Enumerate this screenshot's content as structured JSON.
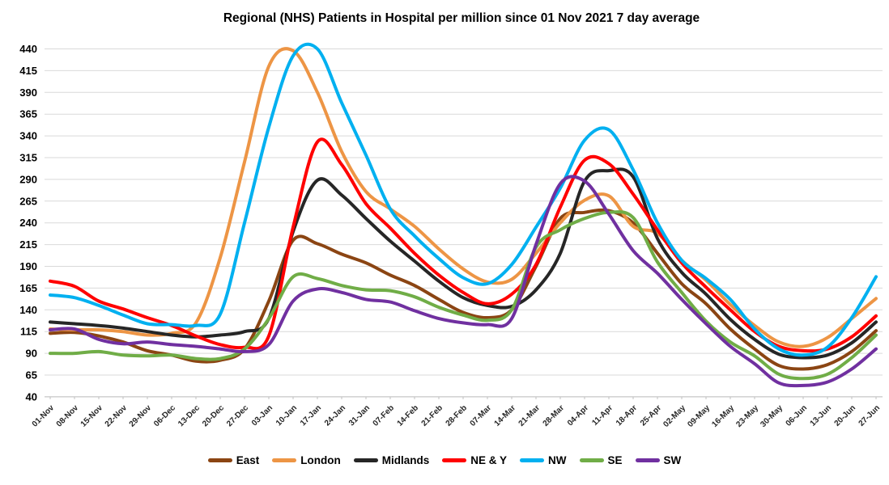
{
  "chart_data": {
    "type": "line",
    "title": "Regional (NHS) Patients in Hospital per million since 01 Nov 2021 7 day average",
    "xlabel": "",
    "ylabel": "",
    "ylim": [
      40,
      440
    ],
    "y_ticks": [
      440,
      415,
      390,
      365,
      340,
      315,
      290,
      265,
      240,
      215,
      190,
      165,
      140,
      115,
      90,
      65,
      40
    ],
    "grid": true,
    "legend_position": "bottom",
    "categories": [
      "01-Nov",
      "08-Nov",
      "15-Nov",
      "22-Nov",
      "29-Nov",
      "06-Dec",
      "13-Dec",
      "20-Dec",
      "27-Dec",
      "03-Jan",
      "10-Jan",
      "17-Jan",
      "24-Jan",
      "31-Jan",
      "07-Feb",
      "14-Feb",
      "21-Feb",
      "28-Feb",
      "07-Mar",
      "14-Mar",
      "21-Mar",
      "28-Mar",
      "04-Apr",
      "11-Apr",
      "18-Apr",
      "25-Apr",
      "02-May",
      "09-May",
      "16-May",
      "23-May",
      "30-May",
      "06-Jun",
      "13-Jun",
      "20-Jun",
      "27-Jun"
    ],
    "series": [
      {
        "name": "East",
        "color": "#8B4513",
        "values": [
          113,
          114,
          110,
          103,
          93,
          88,
          81,
          82,
          95,
          150,
          220,
          216,
          204,
          194,
          180,
          168,
          152,
          137,
          131,
          140,
          190,
          245,
          252,
          254,
          240,
          205,
          170,
          147,
          118,
          95,
          76,
          72,
          77,
          92,
          116
        ]
      },
      {
        "name": "London",
        "color": "#ED9545",
        "values": [
          118,
          117,
          117,
          115,
          111,
          113,
          125,
          200,
          310,
          420,
          438,
          390,
          322,
          276,
          256,
          236,
          210,
          187,
          172,
          175,
          205,
          240,
          266,
          271,
          236,
          228,
          197,
          174,
          146,
          122,
          103,
          98,
          108,
          130,
          153
        ]
      },
      {
        "name": "Midlands",
        "color": "#262626",
        "values": [
          126,
          124,
          122,
          119,
          115,
          111,
          109,
          111,
          115,
          130,
          230,
          289,
          272,
          245,
          219,
          196,
          173,
          154,
          145,
          144,
          163,
          205,
          288,
          300,
          293,
          222,
          183,
          158,
          129,
          106,
          89,
          85,
          88,
          102,
          126
        ]
      },
      {
        "name": "NE & Y",
        "color": "#FF0000",
        "values": [
          173,
          167,
          150,
          141,
          131,
          122,
          110,
          100,
          97,
          110,
          235,
          333,
          307,
          262,
          234,
          205,
          180,
          160,
          147,
          158,
          192,
          258,
          312,
          308,
          273,
          232,
          194,
          166,
          140,
          115,
          98,
          93,
          95,
          109,
          133
        ]
      },
      {
        "name": "NW",
        "color": "#00B0F0",
        "values": [
          157,
          154,
          145,
          134,
          124,
          123,
          122,
          135,
          240,
          350,
          432,
          440,
          378,
          318,
          256,
          225,
          199,
          177,
          170,
          192,
          235,
          280,
          335,
          347,
          301,
          240,
          197,
          176,
          152,
          118,
          95,
          88,
          97,
          131,
          178
        ]
      },
      {
        "name": "SE",
        "color": "#70AD47",
        "values": [
          90,
          90,
          92,
          88,
          87,
          88,
          84,
          84,
          95,
          130,
          178,
          176,
          168,
          163,
          162,
          155,
          143,
          134,
          128,
          140,
          212,
          232,
          245,
          252,
          246,
          195,
          160,
          127,
          103,
          87,
          66,
          61,
          66,
          85,
          111
        ]
      },
      {
        "name": "SW",
        "color": "#7030A0",
        "values": [
          117,
          118,
          106,
          101,
          103,
          100,
          98,
          95,
          92,
          100,
          150,
          164,
          160,
          152,
          149,
          139,
          130,
          125,
          123,
          130,
          215,
          285,
          288,
          250,
          208,
          182,
          152,
          124,
          98,
          78,
          56,
          53,
          57,
          72,
          95
        ]
      }
    ],
    "style": {
      "gridline_color": "#D9D9D9",
      "axis_color": "#BFBFBF",
      "line_width": 4
    }
  }
}
